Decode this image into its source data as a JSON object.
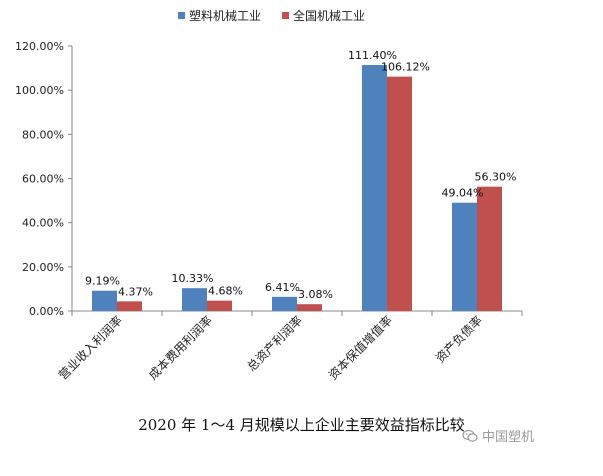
{
  "chart_data": {
    "type": "bar",
    "categories": [
      "营业收入利润率",
      "成本费用利润率",
      "总资产利润率",
      "资本保值增值率",
      "资产负债率"
    ],
    "series": [
      {
        "name": "塑料机械工业",
        "values": [
          9.19,
          10.33,
          6.41,
          111.4,
          49.04
        ],
        "labels": [
          "9.19%",
          "10.33%",
          "6.41%",
          "111.40%",
          "49.04%"
        ],
        "color": "#4f81bd"
      },
      {
        "name": "全国机械工业",
        "values": [
          4.37,
          4.68,
          3.08,
          106.12,
          56.3
        ],
        "labels": [
          "4.37%",
          "4.68%",
          "3.08%",
          "106.12%",
          "56.30%"
        ],
        "color": "#c0504d"
      }
    ],
    "yticks": [
      "0.00%",
      "20.00%",
      "40.00%",
      "60.00%",
      "80.00%",
      "100.00%",
      "120.00%"
    ],
    "ylim": [
      0,
      120
    ],
    "ylabel": "",
    "xlabel": "",
    "grid": false,
    "legend_position": "top-center"
  },
  "caption": "2020 年 1～4 月规模以上企业主要效益指标比较",
  "watermark": "中国塑机"
}
